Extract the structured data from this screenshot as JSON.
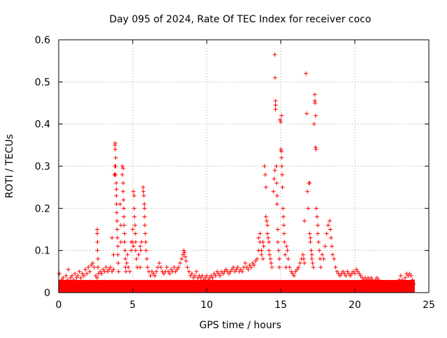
{
  "chart_data": {
    "type": "scatter",
    "title": "Day 095 of 2024, Rate Of TEC Index for receiver coco",
    "xlabel": "GPS time / hours",
    "ylabel": "ROTI / TECUs",
    "xlim": [
      0,
      25
    ],
    "ylim": [
      0,
      0.6
    ],
    "xticks": [
      {
        "value": 0,
        "label": "0"
      },
      {
        "value": 5,
        "label": "5"
      },
      {
        "value": 10,
        "label": "10"
      },
      {
        "value": 15,
        "label": "15"
      },
      {
        "value": 20,
        "label": "20"
      },
      {
        "value": 25,
        "label": "25"
      }
    ],
    "yticks": [
      {
        "value": 0,
        "label": "0"
      },
      {
        "value": 0.1,
        "label": "0.1"
      },
      {
        "value": 0.2,
        "label": "0.2"
      },
      {
        "value": 0.3,
        "label": "0.3"
      },
      {
        "value": 0.4,
        "label": "0.4"
      },
      {
        "value": 0.5,
        "label": "0.5"
      },
      {
        "value": 0.6,
        "label": "0.6"
      }
    ],
    "grid": true,
    "marker": "plus",
    "color": "#ff0000",
    "points": [
      [
        0.05,
        0.045
      ],
      [
        0.1,
        0.02
      ],
      [
        0.2,
        0.03
      ],
      [
        0.3,
        0.035
      ],
      [
        0.4,
        0.025
      ],
      [
        0.5,
        0.04
      ],
      [
        0.6,
        0.03
      ],
      [
        0.65,
        0.055
      ],
      [
        0.8,
        0.035
      ],
      [
        0.9,
        0.04
      ],
      [
        1.0,
        0.03
      ],
      [
        1.1,
        0.045
      ],
      [
        1.2,
        0.035
      ],
      [
        1.3,
        0.04
      ],
      [
        1.4,
        0.05
      ],
      [
        1.5,
        0.035
      ],
      [
        1.6,
        0.045
      ],
      [
        1.7,
        0.04
      ],
      [
        1.8,
        0.055
      ],
      [
        1.9,
        0.045
      ],
      [
        2.0,
        0.06
      ],
      [
        2.1,
        0.05
      ],
      [
        2.2,
        0.065
      ],
      [
        2.3,
        0.07
      ],
      [
        2.4,
        0.06
      ],
      [
        2.5,
        0.04
      ],
      [
        2.6,
        0.035
      ],
      [
        2.7,
        0.045
      ],
      [
        2.6,
        0.15
      ],
      [
        2.6,
        0.14
      ],
      [
        2.62,
        0.12
      ],
      [
        2.62,
        0.1
      ],
      [
        2.65,
        0.08
      ],
      [
        2.65,
        0.06
      ],
      [
        2.8,
        0.05
      ],
      [
        2.9,
        0.045
      ],
      [
        3.0,
        0.055
      ],
      [
        3.1,
        0.05
      ],
      [
        3.2,
        0.06
      ],
      [
        3.3,
        0.05
      ],
      [
        3.4,
        0.055
      ],
      [
        3.5,
        0.06
      ],
      [
        3.6,
        0.05
      ],
      [
        3.7,
        0.055
      ],
      [
        3.6,
        0.13
      ],
      [
        3.7,
        0.09
      ],
      [
        3.75,
        0.28
      ],
      [
        3.8,
        0.3
      ],
      [
        3.8,
        0.28
      ],
      [
        3.8,
        0.35
      ],
      [
        3.82,
        0.355
      ],
      [
        3.82,
        0.34
      ],
      [
        3.85,
        0.32
      ],
      [
        3.85,
        0.3
      ],
      [
        3.85,
        0.28
      ],
      [
        3.88,
        0.26
      ],
      [
        3.9,
        0.245
      ],
      [
        3.9,
        0.23
      ],
      [
        3.9,
        0.21
      ],
      [
        3.92,
        0.19
      ],
      [
        3.95,
        0.17
      ],
      [
        3.95,
        0.15
      ],
      [
        3.97,
        0.13
      ],
      [
        4.0,
        0.11
      ],
      [
        4.0,
        0.09
      ],
      [
        4.02,
        0.07
      ],
      [
        4.05,
        0.05
      ],
      [
        4.15,
        0.21
      ],
      [
        4.2,
        0.16
      ],
      [
        4.2,
        0.12
      ],
      [
        4.3,
        0.3
      ],
      [
        4.3,
        0.28
      ],
      [
        4.35,
        0.295
      ],
      [
        4.35,
        0.26
      ],
      [
        4.35,
        0.24
      ],
      [
        4.38,
        0.22
      ],
      [
        4.4,
        0.2
      ],
      [
        4.4,
        0.18
      ],
      [
        4.42,
        0.16
      ],
      [
        4.45,
        0.14
      ],
      [
        4.45,
        0.12
      ],
      [
        4.48,
        0.1
      ],
      [
        4.5,
        0.08
      ],
      [
        4.5,
        0.06
      ],
      [
        4.55,
        0.05
      ],
      [
        4.6,
        0.07
      ],
      [
        4.65,
        0.09
      ],
      [
        4.7,
        0.06
      ],
      [
        4.8,
        0.05
      ],
      [
        4.9,
        0.1
      ],
      [
        4.9,
        0.12
      ],
      [
        5.0,
        0.12
      ],
      [
        5.0,
        0.15
      ],
      [
        5.05,
        0.11
      ],
      [
        5.05,
        0.24
      ],
      [
        5.1,
        0.23
      ],
      [
        5.1,
        0.2
      ],
      [
        5.12,
        0.18
      ],
      [
        5.15,
        0.16
      ],
      [
        5.18,
        0.14
      ],
      [
        5.2,
        0.12
      ],
      [
        5.2,
        0.1
      ],
      [
        5.25,
        0.08
      ],
      [
        5.3,
        0.06
      ],
      [
        5.4,
        0.09
      ],
      [
        5.5,
        0.11
      ],
      [
        5.5,
        0.06
      ],
      [
        5.55,
        0.1
      ],
      [
        5.6,
        0.12
      ],
      [
        5.7,
        0.25
      ],
      [
        5.72,
        0.24
      ],
      [
        5.75,
        0.23
      ],
      [
        5.78,
        0.21
      ],
      [
        5.8,
        0.2
      ],
      [
        5.8,
        0.18
      ],
      [
        5.82,
        0.16
      ],
      [
        5.85,
        0.14
      ],
      [
        5.88,
        0.12
      ],
      [
        5.9,
        0.1
      ],
      [
        5.95,
        0.08
      ],
      [
        6.0,
        0.06
      ],
      [
        6.1,
        0.05
      ],
      [
        6.2,
        0.04
      ],
      [
        6.3,
        0.05
      ],
      [
        6.4,
        0.045
      ],
      [
        6.5,
        0.04
      ],
      [
        6.6,
        0.05
      ],
      [
        6.7,
        0.06
      ],
      [
        6.8,
        0.07
      ],
      [
        6.9,
        0.06
      ],
      [
        7.0,
        0.05
      ],
      [
        7.1,
        0.045
      ],
      [
        7.2,
        0.05
      ],
      [
        7.3,
        0.06
      ],
      [
        7.4,
        0.05
      ],
      [
        7.5,
        0.045
      ],
      [
        7.6,
        0.055
      ],
      [
        7.7,
        0.05
      ],
      [
        7.8,
        0.06
      ],
      [
        7.9,
        0.05
      ],
      [
        8.0,
        0.055
      ],
      [
        8.1,
        0.06
      ],
      [
        8.2,
        0.07
      ],
      [
        8.3,
        0.08
      ],
      [
        8.4,
        0.09
      ],
      [
        8.45,
        0.1
      ],
      [
        8.5,
        0.095
      ],
      [
        8.55,
        0.085
      ],
      [
        8.6,
        0.075
      ],
      [
        8.7,
        0.06
      ],
      [
        8.8,
        0.05
      ],
      [
        8.9,
        0.04
      ],
      [
        9.0,
        0.045
      ],
      [
        9.1,
        0.035
      ],
      [
        9.2,
        0.04
      ],
      [
        9.3,
        0.05
      ],
      [
        9.4,
        0.035
      ],
      [
        9.5,
        0.04
      ],
      [
        9.6,
        0.035
      ],
      [
        9.7,
        0.04
      ],
      [
        9.8,
        0.03
      ],
      [
        9.9,
        0.035
      ],
      [
        10.0,
        0.04
      ],
      [
        10.1,
        0.03
      ],
      [
        10.2,
        0.035
      ],
      [
        10.3,
        0.04
      ],
      [
        10.4,
        0.035
      ],
      [
        10.5,
        0.045
      ],
      [
        10.6,
        0.04
      ],
      [
        10.7,
        0.05
      ],
      [
        10.8,
        0.045
      ],
      [
        10.9,
        0.04
      ],
      [
        11.0,
        0.05
      ],
      [
        11.1,
        0.045
      ],
      [
        11.2,
        0.05
      ],
      [
        11.3,
        0.055
      ],
      [
        11.4,
        0.05
      ],
      [
        11.5,
        0.045
      ],
      [
        11.6,
        0.05
      ],
      [
        11.7,
        0.055
      ],
      [
        11.8,
        0.06
      ],
      [
        11.9,
        0.05
      ],
      [
        12.0,
        0.055
      ],
      [
        12.1,
        0.06
      ],
      [
        12.2,
        0.05
      ],
      [
        12.3,
        0.055
      ],
      [
        12.4,
        0.05
      ],
      [
        12.5,
        0.06
      ],
      [
        12.6,
        0.07
      ],
      [
        12.7,
        0.06
      ],
      [
        12.8,
        0.055
      ],
      [
        12.9,
        0.065
      ],
      [
        13.0,
        0.06
      ],
      [
        13.1,
        0.07
      ],
      [
        13.2,
        0.065
      ],
      [
        13.3,
        0.075
      ],
      [
        13.4,
        0.08
      ],
      [
        13.5,
        0.1
      ],
      [
        13.5,
        0.13
      ],
      [
        13.6,
        0.14
      ],
      [
        13.6,
        0.12
      ],
      [
        13.7,
        0.1
      ],
      [
        13.7,
        0.09
      ],
      [
        13.8,
        0.12
      ],
      [
        13.8,
        0.08
      ],
      [
        13.85,
        0.11
      ],
      [
        13.9,
        0.3
      ],
      [
        13.95,
        0.28
      ],
      [
        14.0,
        0.25
      ],
      [
        14.0,
        0.18
      ],
      [
        14.05,
        0.17
      ],
      [
        14.1,
        0.16
      ],
      [
        14.1,
        0.14
      ],
      [
        14.15,
        0.13
      ],
      [
        14.2,
        0.12
      ],
      [
        14.2,
        0.1
      ],
      [
        14.25,
        0.09
      ],
      [
        14.3,
        0.08
      ],
      [
        14.35,
        0.07
      ],
      [
        14.4,
        0.06
      ],
      [
        14.5,
        0.24
      ],
      [
        14.55,
        0.27
      ],
      [
        14.6,
        0.29
      ],
      [
        14.6,
        0.565
      ],
      [
        14.62,
        0.51
      ],
      [
        14.65,
        0.455
      ],
      [
        14.65,
        0.445
      ],
      [
        14.65,
        0.435
      ],
      [
        14.7,
        0.3
      ],
      [
        14.72,
        0.26
      ],
      [
        14.75,
        0.23
      ],
      [
        14.75,
        0.21
      ],
      [
        14.8,
        0.15
      ],
      [
        14.8,
        0.12
      ],
      [
        14.85,
        0.1
      ],
      [
        14.9,
        0.08
      ],
      [
        14.9,
        0.06
      ],
      [
        14.95,
        0.41
      ],
      [
        15.0,
        0.405
      ],
      [
        15.05,
        0.42
      ],
      [
        15.0,
        0.34
      ],
      [
        15.05,
        0.335
      ],
      [
        15.05,
        0.32
      ],
      [
        15.08,
        0.3
      ],
      [
        15.1,
        0.28
      ],
      [
        15.12,
        0.25
      ],
      [
        15.15,
        0.2
      ],
      [
        15.18,
        0.18
      ],
      [
        15.2,
        0.16
      ],
      [
        15.22,
        0.14
      ],
      [
        15.25,
        0.12
      ],
      [
        15.3,
        0.09
      ],
      [
        15.35,
        0.06
      ],
      [
        15.4,
        0.11
      ],
      [
        15.45,
        0.1
      ],
      [
        15.5,
        0.08
      ],
      [
        15.6,
        0.06
      ],
      [
        15.7,
        0.05
      ],
      [
        15.8,
        0.045
      ],
      [
        15.9,
        0.04
      ],
      [
        16.0,
        0.05
      ],
      [
        16.1,
        0.055
      ],
      [
        16.2,
        0.06
      ],
      [
        16.3,
        0.07
      ],
      [
        16.4,
        0.08
      ],
      [
        16.5,
        0.09
      ],
      [
        16.55,
        0.08
      ],
      [
        16.6,
        0.07
      ],
      [
        16.6,
        0.17
      ],
      [
        16.7,
        0.52
      ],
      [
        16.75,
        0.425
      ],
      [
        16.8,
        0.24
      ],
      [
        16.85,
        0.2
      ],
      [
        16.9,
        0.26
      ],
      [
        16.95,
        0.26
      ],
      [
        16.95,
        0.14
      ],
      [
        17.0,
        0.13
      ],
      [
        17.0,
        0.12
      ],
      [
        17.05,
        0.1
      ],
      [
        17.1,
        0.09
      ],
      [
        17.1,
        0.08
      ],
      [
        17.15,
        0.07
      ],
      [
        17.2,
        0.06
      ],
      [
        17.25,
        0.4
      ],
      [
        17.3,
        0.47
      ],
      [
        17.3,
        0.455
      ],
      [
        17.32,
        0.45
      ],
      [
        17.35,
        0.42
      ],
      [
        17.35,
        0.345
      ],
      [
        17.38,
        0.34
      ],
      [
        17.4,
        0.2
      ],
      [
        17.45,
        0.18
      ],
      [
        17.5,
        0.16
      ],
      [
        17.5,
        0.14
      ],
      [
        17.55,
        0.12
      ],
      [
        17.6,
        0.1
      ],
      [
        17.65,
        0.08
      ],
      [
        17.7,
        0.06
      ],
      [
        17.8,
        0.09
      ],
      [
        17.9,
        0.08
      ],
      [
        18.0,
        0.11
      ],
      [
        18.1,
        0.14
      ],
      [
        18.2,
        0.16
      ],
      [
        18.3,
        0.17
      ],
      [
        18.35,
        0.15
      ],
      [
        18.4,
        0.13
      ],
      [
        18.45,
        0.11
      ],
      [
        18.5,
        0.09
      ],
      [
        18.6,
        0.08
      ],
      [
        18.7,
        0.06
      ],
      [
        18.8,
        0.05
      ],
      [
        18.9,
        0.045
      ],
      [
        19.0,
        0.04
      ],
      [
        19.1,
        0.045
      ],
      [
        19.2,
        0.05
      ],
      [
        19.3,
        0.045
      ],
      [
        19.4,
        0.04
      ],
      [
        19.5,
        0.05
      ],
      [
        19.6,
        0.045
      ],
      [
        19.7,
        0.04
      ],
      [
        19.8,
        0.045
      ],
      [
        19.9,
        0.05
      ],
      [
        20.0,
        0.045
      ],
      [
        20.1,
        0.055
      ],
      [
        20.2,
        0.05
      ],
      [
        20.3,
        0.045
      ],
      [
        20.4,
        0.04
      ],
      [
        20.5,
        0.035
      ],
      [
        20.6,
        0.03
      ],
      [
        20.7,
        0.035
      ],
      [
        20.8,
        0.03
      ],
      [
        20.9,
        0.035
      ],
      [
        21.0,
        0.03
      ],
      [
        21.1,
        0.035
      ],
      [
        21.2,
        0.03
      ],
      [
        21.3,
        0.025
      ],
      [
        21.4,
        0.03
      ],
      [
        21.5,
        0.035
      ],
      [
        21.6,
        0.03
      ],
      [
        21.7,
        0.025
      ],
      [
        21.8,
        0.02
      ],
      [
        21.9,
        0.025
      ],
      [
        22.0,
        0.02
      ],
      [
        22.1,
        0.025
      ],
      [
        22.2,
        0.02
      ],
      [
        22.3,
        0.015
      ],
      [
        22.4,
        0.02
      ],
      [
        22.5,
        0.025
      ],
      [
        22.6,
        0.02
      ],
      [
        22.7,
        0.015
      ],
      [
        22.8,
        0.02
      ],
      [
        22.9,
        0.025
      ],
      [
        23.0,
        0.03
      ],
      [
        23.1,
        0.04
      ],
      [
        23.2,
        0.03
      ],
      [
        23.3,
        0.025
      ],
      [
        23.4,
        0.035
      ],
      [
        23.5,
        0.045
      ],
      [
        23.6,
        0.04
      ],
      [
        23.7,
        0.045
      ],
      [
        23.8,
        0.04
      ],
      [
        23.9,
        0.03
      ],
      [
        24.0,
        0.02
      ]
    ],
    "baseline": {
      "x": [
        0,
        24.05
      ],
      "y_max": 0.03
    }
  }
}
